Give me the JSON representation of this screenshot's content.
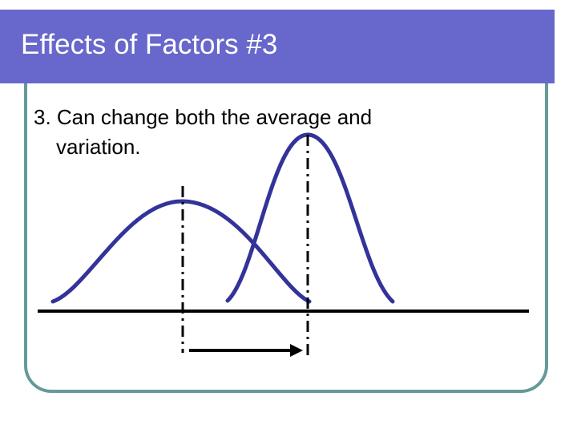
{
  "slide": {
    "title": "Effects of Factors #3",
    "bullet_line1": "3. Can change both the average and",
    "bullet_line2": "variation."
  },
  "colors": {
    "title_bg": "#6767cc",
    "frame": "#669999",
    "curve": "#333399",
    "axis": "#000000"
  },
  "diagram": {
    "curves": [
      {
        "name": "original distribution",
        "spread": "wide"
      },
      {
        "name": "shifted distribution",
        "spread": "narrow"
      }
    ],
    "arrow_direction": "right"
  }
}
